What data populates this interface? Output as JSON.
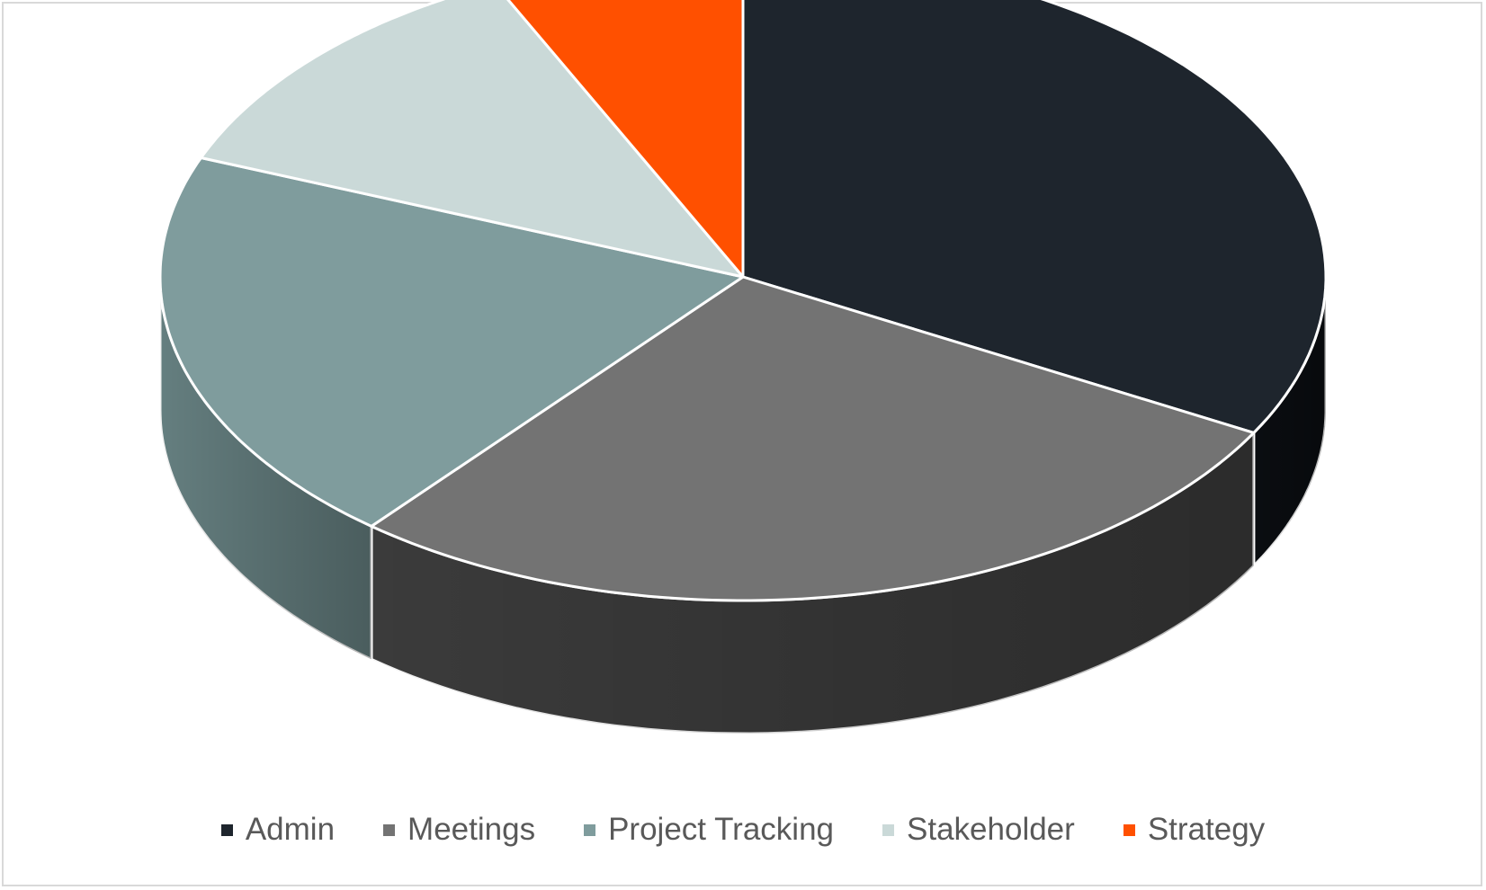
{
  "chart_data": {
    "type": "pie",
    "style": "3d",
    "title": "",
    "categories": [
      "Admin",
      "Meetings",
      "Project Tracking",
      "Stakeholder",
      "Strategy"
    ],
    "values": [
      33,
      28,
      20,
      12,
      7
    ],
    "colors": [
      "#1e252d",
      "#737373",
      "#7f9c9d",
      "#cad9d8",
      "#ff5000"
    ],
    "side_colors": [
      "#0b0e12",
      "#3e3e3e",
      "#6a8586",
      "#aebebd",
      "#c23c00"
    ],
    "legend_position": "bottom"
  }
}
